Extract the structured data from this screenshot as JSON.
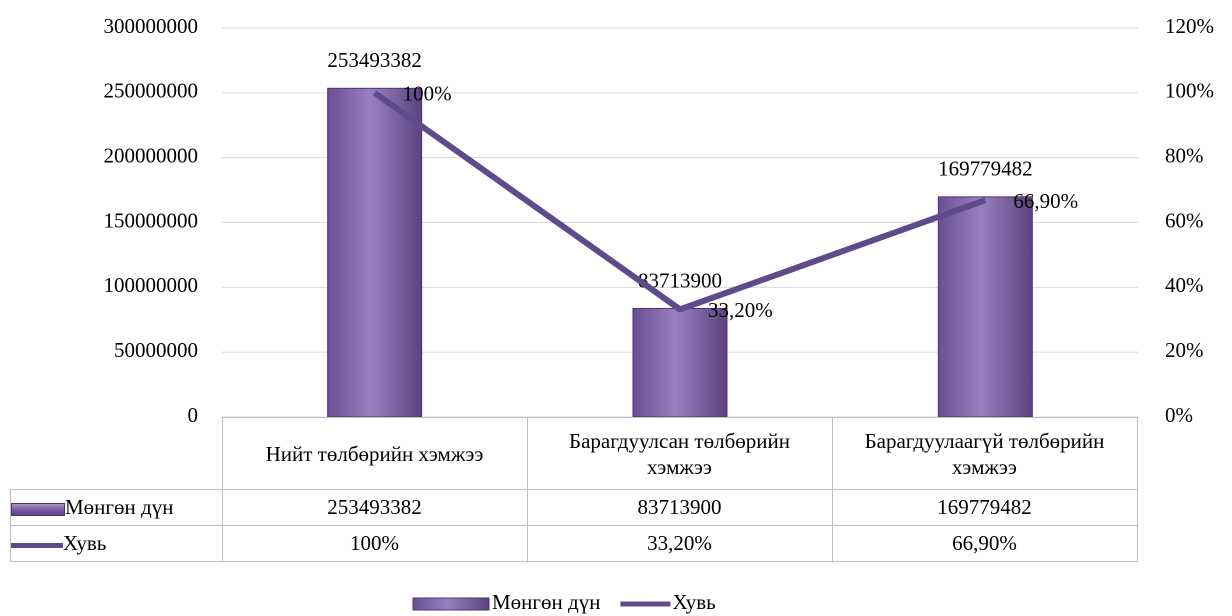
{
  "chart_data": {
    "type": "bar",
    "categories": [
      "Нийт төлбөрийн хэмжээ",
      "Барагдуулсан төлбөрийн хэмжээ",
      "Барагдуулаагүй төлбөрийн хэмжээ"
    ],
    "series": [
      {
        "name": "Мөнгөн дүн",
        "type": "bar",
        "color": "#8064a2",
        "values": [
          253493382,
          83713900,
          169779482
        ]
      },
      {
        "name": "Хувь",
        "type": "line",
        "axis": "y2",
        "color": "#5f4b8b",
        "values": [
          100,
          33.2,
          66.9
        ],
        "value_labels": [
          "100%",
          "33,20%",
          "66,90%"
        ]
      }
    ],
    "ylim": [
      0,
      300000000
    ],
    "yticks": [
      0,
      50000000,
      100000000,
      150000000,
      200000000,
      250000000,
      300000000
    ],
    "y2lim": [
      0,
      120
    ],
    "y2ticks": [
      {
        "value": 0,
        "label": "0%"
      },
      {
        "value": 20,
        "label": "20%"
      },
      {
        "value": 40,
        "label": "40%"
      },
      {
        "value": 60,
        "label": "60%"
      },
      {
        "value": 80,
        "label": "80%"
      },
      {
        "value": 100,
        "label": "100%"
      },
      {
        "value": 120,
        "label": "120%"
      }
    ],
    "grid": true,
    "legend": "bottom",
    "data_table": true
  }
}
